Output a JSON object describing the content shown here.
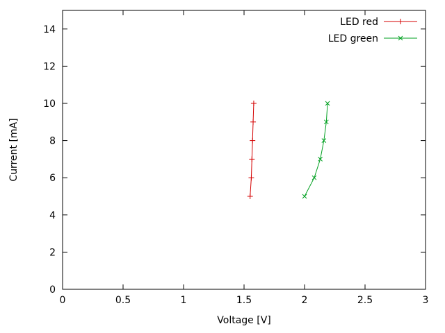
{
  "chart_data": {
    "type": "line",
    "title": "",
    "xlabel": "Voltage [V]",
    "ylabel": "Current [mA]",
    "xlim": [
      0,
      3
    ],
    "ylim": [
      0,
      15
    ],
    "grid": false,
    "legend_position": "top-right-inside",
    "xticks": {
      "values": [
        0,
        0.5,
        1,
        1.5,
        2,
        2.5,
        3
      ],
      "labels": [
        "0",
        "0.5",
        "1",
        "1.5",
        "2",
        "2.5",
        "3"
      ]
    },
    "yticks": {
      "values": [
        0,
        2,
        4,
        6,
        8,
        10,
        12,
        14
      ],
      "labels": [
        "0",
        "2",
        "4",
        "6",
        "8",
        "10",
        "12",
        "14"
      ]
    },
    "series": [
      {
        "name": "LED red",
        "color": "#d40000",
        "marker": "plus",
        "points": [
          [
            1.55,
            5
          ],
          [
            1.56,
            6
          ],
          [
            1.565,
            7
          ],
          [
            1.57,
            8
          ],
          [
            1.575,
            9
          ],
          [
            1.58,
            10
          ]
        ]
      },
      {
        "name": "LED green",
        "color": "#00a020",
        "marker": "cross",
        "points": [
          [
            2.0,
            5
          ],
          [
            2.08,
            6
          ],
          [
            2.13,
            7
          ],
          [
            2.16,
            8
          ],
          [
            2.18,
            9
          ],
          [
            2.19,
            10
          ]
        ]
      }
    ]
  }
}
